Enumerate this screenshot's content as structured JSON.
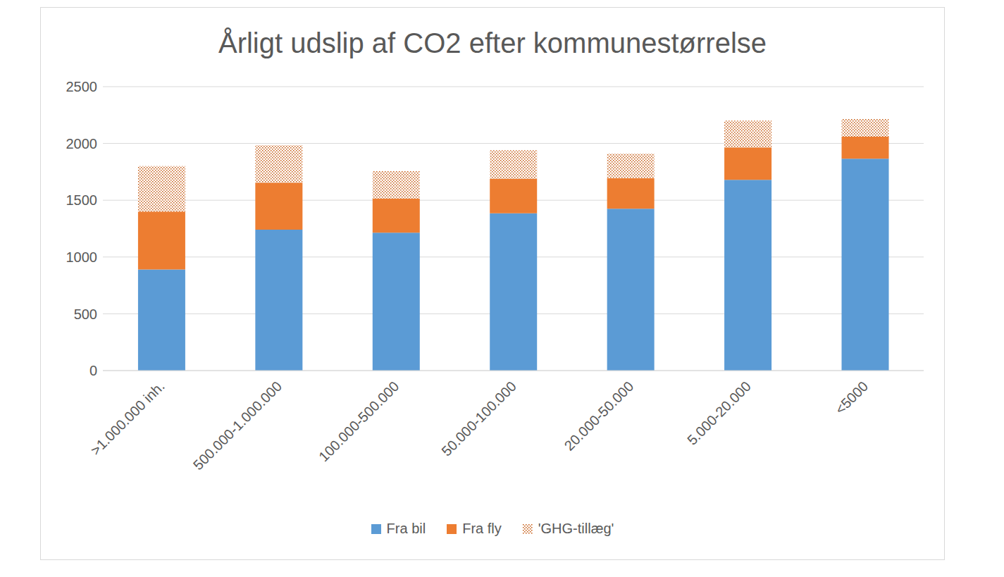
{
  "chart_data": {
    "type": "bar",
    "title": "Årligt udslip af CO2 efter kommunestørrelse",
    "categories": [
      ">1.000.000 inh.",
      "500.000-1.000.000",
      "100.000-500.000",
      "50.000-100.000",
      "20.000-50.000",
      "5.000-20.000",
      "<5000"
    ],
    "series": [
      {
        "name": "Fra bil",
        "color": "#5b9bd5",
        "values": [
          890,
          1240,
          1215,
          1385,
          1425,
          1680,
          1865
        ]
      },
      {
        "name": "Fra fly",
        "color": "#ed7d31",
        "values": [
          510,
          415,
          300,
          305,
          270,
          285,
          195
        ]
      },
      {
        "name": "'GHG-tillæg'",
        "color": "#c55a11",
        "line_style": "dotted",
        "values": [
          400,
          330,
          240,
          250,
          215,
          235,
          155
        ]
      }
    ],
    "ylim": [
      0,
      2500
    ],
    "yticks": [
      0,
      500,
      1000,
      1500,
      2000,
      2500
    ],
    "grid": true,
    "stacked": true,
    "legend": "bottom"
  }
}
